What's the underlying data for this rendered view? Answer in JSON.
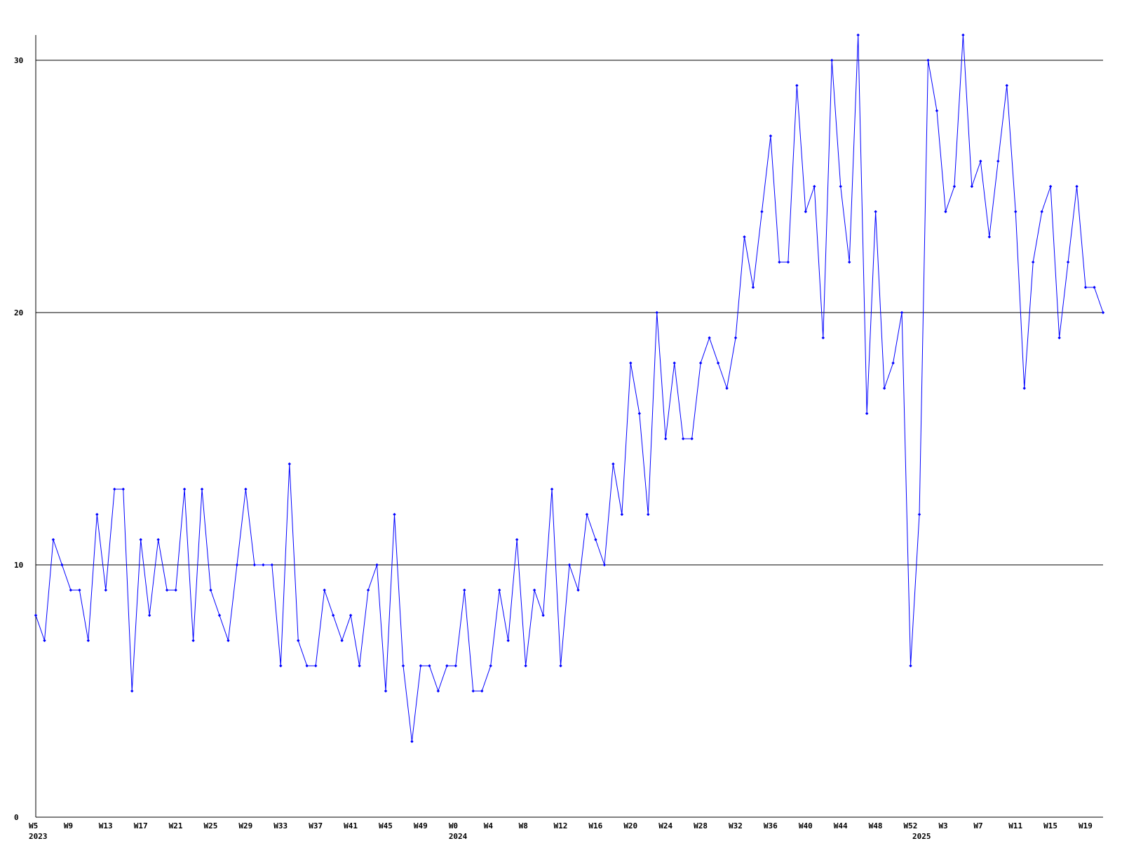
{
  "chart_data": {
    "type": "line",
    "ylim": [
      0,
      31
    ],
    "grid": true,
    "y_ticks": [
      0,
      10,
      20,
      30
    ],
    "x_tick_labels": [
      {
        "index": 0,
        "label": "W5"
      },
      {
        "index": 4,
        "label": "W9"
      },
      {
        "index": 8,
        "label": "W13"
      },
      {
        "index": 12,
        "label": "W17"
      },
      {
        "index": 16,
        "label": "W21"
      },
      {
        "index": 20,
        "label": "W25"
      },
      {
        "index": 24,
        "label": "W29"
      },
      {
        "index": 28,
        "label": "W33"
      },
      {
        "index": 32,
        "label": "W37"
      },
      {
        "index": 36,
        "label": "W41"
      },
      {
        "index": 40,
        "label": "W45"
      },
      {
        "index": 44,
        "label": "W49"
      },
      {
        "index": 48,
        "label": "W0"
      },
      {
        "index": 52,
        "label": "W4"
      },
      {
        "index": 56,
        "label": "W8"
      },
      {
        "index": 60,
        "label": "W12"
      },
      {
        "index": 64,
        "label": "W16"
      },
      {
        "index": 68,
        "label": "W20"
      },
      {
        "index": 72,
        "label": "W24"
      },
      {
        "index": 76,
        "label": "W28"
      },
      {
        "index": 80,
        "label": "W32"
      },
      {
        "index": 84,
        "label": "W36"
      },
      {
        "index": 88,
        "label": "W40"
      },
      {
        "index": 92,
        "label": "W44"
      },
      {
        "index": 96,
        "label": "W48"
      },
      {
        "index": 100,
        "label": "W52"
      },
      {
        "index": 104,
        "label": "W3"
      },
      {
        "index": 108,
        "label": "W7"
      },
      {
        "index": 112,
        "label": "W11"
      },
      {
        "index": 116,
        "label": "W15"
      },
      {
        "index": 120,
        "label": "W19"
      }
    ],
    "year_labels": [
      {
        "index": 0,
        "label": "2023"
      },
      {
        "index": 48,
        "label": "2024"
      },
      {
        "index": 101,
        "label": "2025"
      }
    ],
    "series": [
      {
        "color": "#0000ff",
        "values": [
          8,
          7,
          11,
          10,
          9,
          9,
          7,
          12,
          9,
          13,
          13,
          5,
          11,
          8,
          11,
          9,
          9,
          13,
          7,
          13,
          9,
          8,
          7,
          10,
          13,
          10,
          10,
          10,
          6,
          14,
          7,
          6,
          6,
          9,
          8,
          7,
          8,
          6,
          9,
          10,
          5,
          12,
          6,
          3,
          6,
          6,
          5,
          6,
          6,
          9,
          5,
          5,
          6,
          9,
          7,
          11,
          6,
          9,
          8,
          13,
          6,
          10,
          9,
          12,
          11,
          10,
          14,
          12,
          18,
          16,
          12,
          20,
          15,
          18,
          15,
          15,
          18,
          19,
          18,
          17,
          19,
          23,
          21,
          24,
          27,
          22,
          22,
          29,
          24,
          25,
          19,
          30,
          25,
          22,
          31,
          16,
          24,
          17,
          18,
          20,
          6,
          12,
          30,
          28,
          24,
          25,
          31,
          25,
          26,
          23,
          26,
          29,
          24,
          17,
          22,
          24,
          25,
          19,
          22,
          25,
          21,
          21,
          20
        ]
      }
    ]
  }
}
